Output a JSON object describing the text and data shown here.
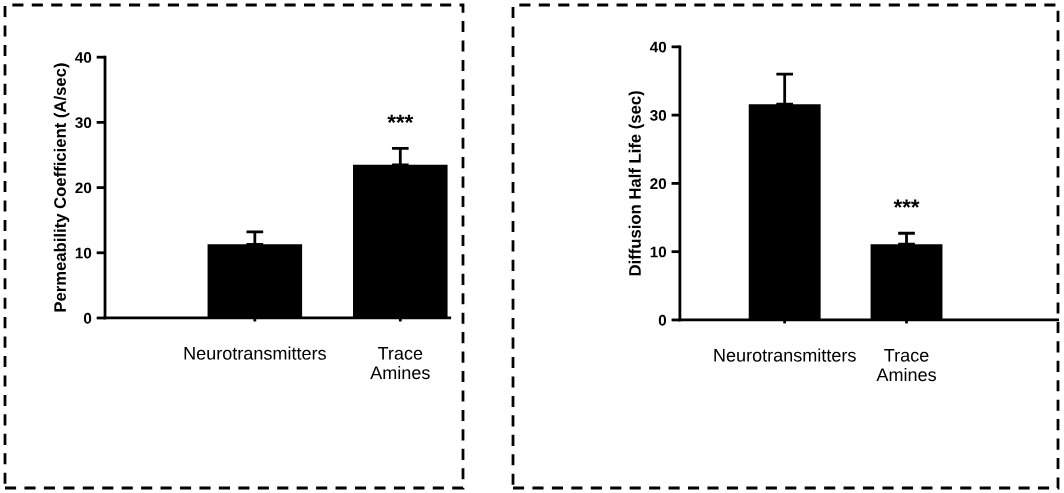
{
  "chart_data": [
    {
      "type": "bar",
      "ylabel": "Permeability Coefficient (A/sec)",
      "categories": [
        null,
        "Neurotransmitters",
        "Trace\nAmines"
      ],
      "values": [
        null,
        11.3,
        23.5
      ],
      "errors": [
        null,
        [
          11.3,
          13.2
        ],
        [
          23.5,
          26
        ]
      ],
      "color": "#000000",
      "ylim": [
        0,
        40
      ],
      "yticks": [
        0,
        10,
        20,
        30,
        40
      ],
      "grid": false,
      "legend": false,
      "annotations": [
        "***"
      ]
    },
    {
      "type": "bar",
      "ylabel": "Diffusion Half Life (sec)",
      "categories": [
        "Neurotransmitters",
        "Trace\nAmines"
      ],
      "values": [
        31.6,
        11.1
      ],
      "errors": [
        [
          31.6,
          36
        ],
        [
          11.1,
          12.7
        ]
      ],
      "color": "#000000",
      "ylim": [
        0,
        40
      ],
      "yticks": [
        0,
        10,
        20,
        30,
        40
      ],
      "grid": false,
      "legend": false,
      "annotations": [
        "***"
      ]
    }
  ]
}
